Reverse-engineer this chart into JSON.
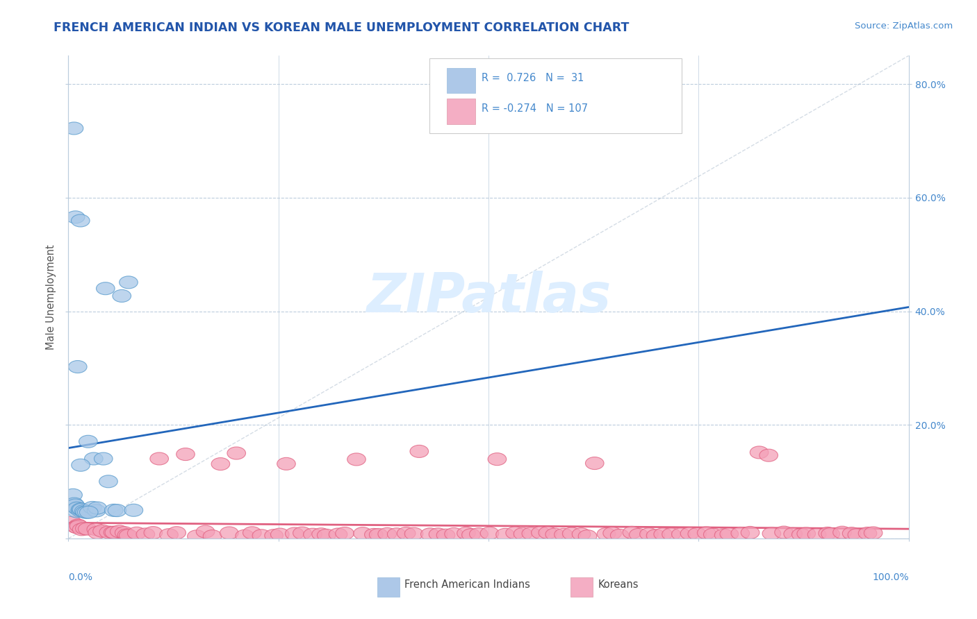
{
  "title": "FRENCH AMERICAN INDIAN VS KOREAN MALE UNEMPLOYMENT CORRELATION CHART",
  "source": "Source: ZipAtlas.com",
  "ylabel": "Male Unemployment",
  "group1_label": "French American Indians",
  "group2_label": "Koreans",
  "group1_color": "#a8c8e8",
  "group2_color": "#f4a0b8",
  "group1_edge_color": "#5599cc",
  "group2_edge_color": "#e06080",
  "group1_line_color": "#2266bb",
  "group2_line_color": "#e06080",
  "group1_fill_color": "#adc8e8",
  "group2_fill_color": "#f4aec4",
  "background_color": "#ffffff",
  "watermark_color": "#ddeeff",
  "title_color": "#2255aa",
  "axis_color": "#4488cc",
  "grid_color": "#bbccdd",
  "group1_R": 0.726,
  "group1_N": 31,
  "group2_R": -0.274,
  "group2_N": 107,
  "xlim": [
    0.0,
    1.0
  ],
  "ylim": [
    0.0,
    0.85
  ],
  "y_tick_vals": [
    0.0,
    0.2,
    0.4,
    0.6,
    0.8
  ],
  "y_tick_labels": [
    "",
    "20.0%",
    "40.0%",
    "60.0%",
    "80.0%"
  ],
  "group1_x": [
    0.005,
    0.006,
    0.007,
    0.008,
    0.009,
    0.01,
    0.011,
    0.012,
    0.013,
    0.014,
    0.015,
    0.016,
    0.018,
    0.02,
    0.022,
    0.025,
    0.028,
    0.03,
    0.033,
    0.036,
    0.04,
    0.044,
    0.048,
    0.052,
    0.058,
    0.065,
    0.072,
    0.08,
    0.01,
    0.015,
    0.025
  ],
  "group1_y": [
    0.72,
    0.08,
    0.06,
    0.57,
    0.06,
    0.05,
    0.05,
    0.05,
    0.05,
    0.05,
    0.56,
    0.05,
    0.05,
    0.05,
    0.05,
    0.17,
    0.05,
    0.14,
    0.05,
    0.05,
    0.14,
    0.44,
    0.1,
    0.05,
    0.05,
    0.43,
    0.45,
    0.05,
    0.3,
    0.13,
    0.05
  ],
  "group2_x": [
    0.005,
    0.008,
    0.01,
    0.012,
    0.015,
    0.018,
    0.02,
    0.025,
    0.03,
    0.035,
    0.04,
    0.045,
    0.05,
    0.055,
    0.06,
    0.065,
    0.07,
    0.075,
    0.08,
    0.09,
    0.1,
    0.11,
    0.12,
    0.13,
    0.14,
    0.15,
    0.16,
    0.17,
    0.18,
    0.19,
    0.2,
    0.21,
    0.22,
    0.23,
    0.24,
    0.25,
    0.26,
    0.27,
    0.28,
    0.29,
    0.3,
    0.31,
    0.32,
    0.33,
    0.34,
    0.35,
    0.36,
    0.37,
    0.38,
    0.39,
    0.4,
    0.41,
    0.42,
    0.43,
    0.44,
    0.45,
    0.46,
    0.47,
    0.48,
    0.49,
    0.5,
    0.51,
    0.52,
    0.53,
    0.54,
    0.55,
    0.56,
    0.57,
    0.58,
    0.59,
    0.6,
    0.61,
    0.62,
    0.63,
    0.64,
    0.65,
    0.66,
    0.67,
    0.68,
    0.69,
    0.7,
    0.71,
    0.72,
    0.73,
    0.74,
    0.75,
    0.76,
    0.77,
    0.78,
    0.79,
    0.8,
    0.81,
    0.82,
    0.83,
    0.84,
    0.85,
    0.86,
    0.87,
    0.88,
    0.89,
    0.9,
    0.91,
    0.92,
    0.93,
    0.94,
    0.95,
    0.96
  ],
  "group2_y": [
    0.03,
    0.025,
    0.02,
    0.02,
    0.02,
    0.018,
    0.018,
    0.015,
    0.015,
    0.013,
    0.012,
    0.012,
    0.01,
    0.01,
    0.01,
    0.01,
    0.01,
    0.008,
    0.008,
    0.008,
    0.008,
    0.14,
    0.008,
    0.008,
    0.15,
    0.008,
    0.008,
    0.008,
    0.13,
    0.008,
    0.15,
    0.008,
    0.008,
    0.008,
    0.008,
    0.008,
    0.13,
    0.008,
    0.008,
    0.008,
    0.008,
    0.008,
    0.008,
    0.008,
    0.14,
    0.008,
    0.008,
    0.008,
    0.008,
    0.008,
    0.008,
    0.008,
    0.15,
    0.008,
    0.008,
    0.008,
    0.008,
    0.008,
    0.008,
    0.008,
    0.008,
    0.14,
    0.008,
    0.008,
    0.008,
    0.008,
    0.008,
    0.008,
    0.008,
    0.008,
    0.008,
    0.008,
    0.008,
    0.13,
    0.008,
    0.008,
    0.008,
    0.008,
    0.008,
    0.008,
    0.008,
    0.008,
    0.008,
    0.008,
    0.008,
    0.008,
    0.008,
    0.008,
    0.008,
    0.008,
    0.008,
    0.008,
    0.15,
    0.15,
    0.008,
    0.008,
    0.008,
    0.008,
    0.008,
    0.008,
    0.008,
    0.008,
    0.008,
    0.008,
    0.008,
    0.008,
    0.008
  ]
}
